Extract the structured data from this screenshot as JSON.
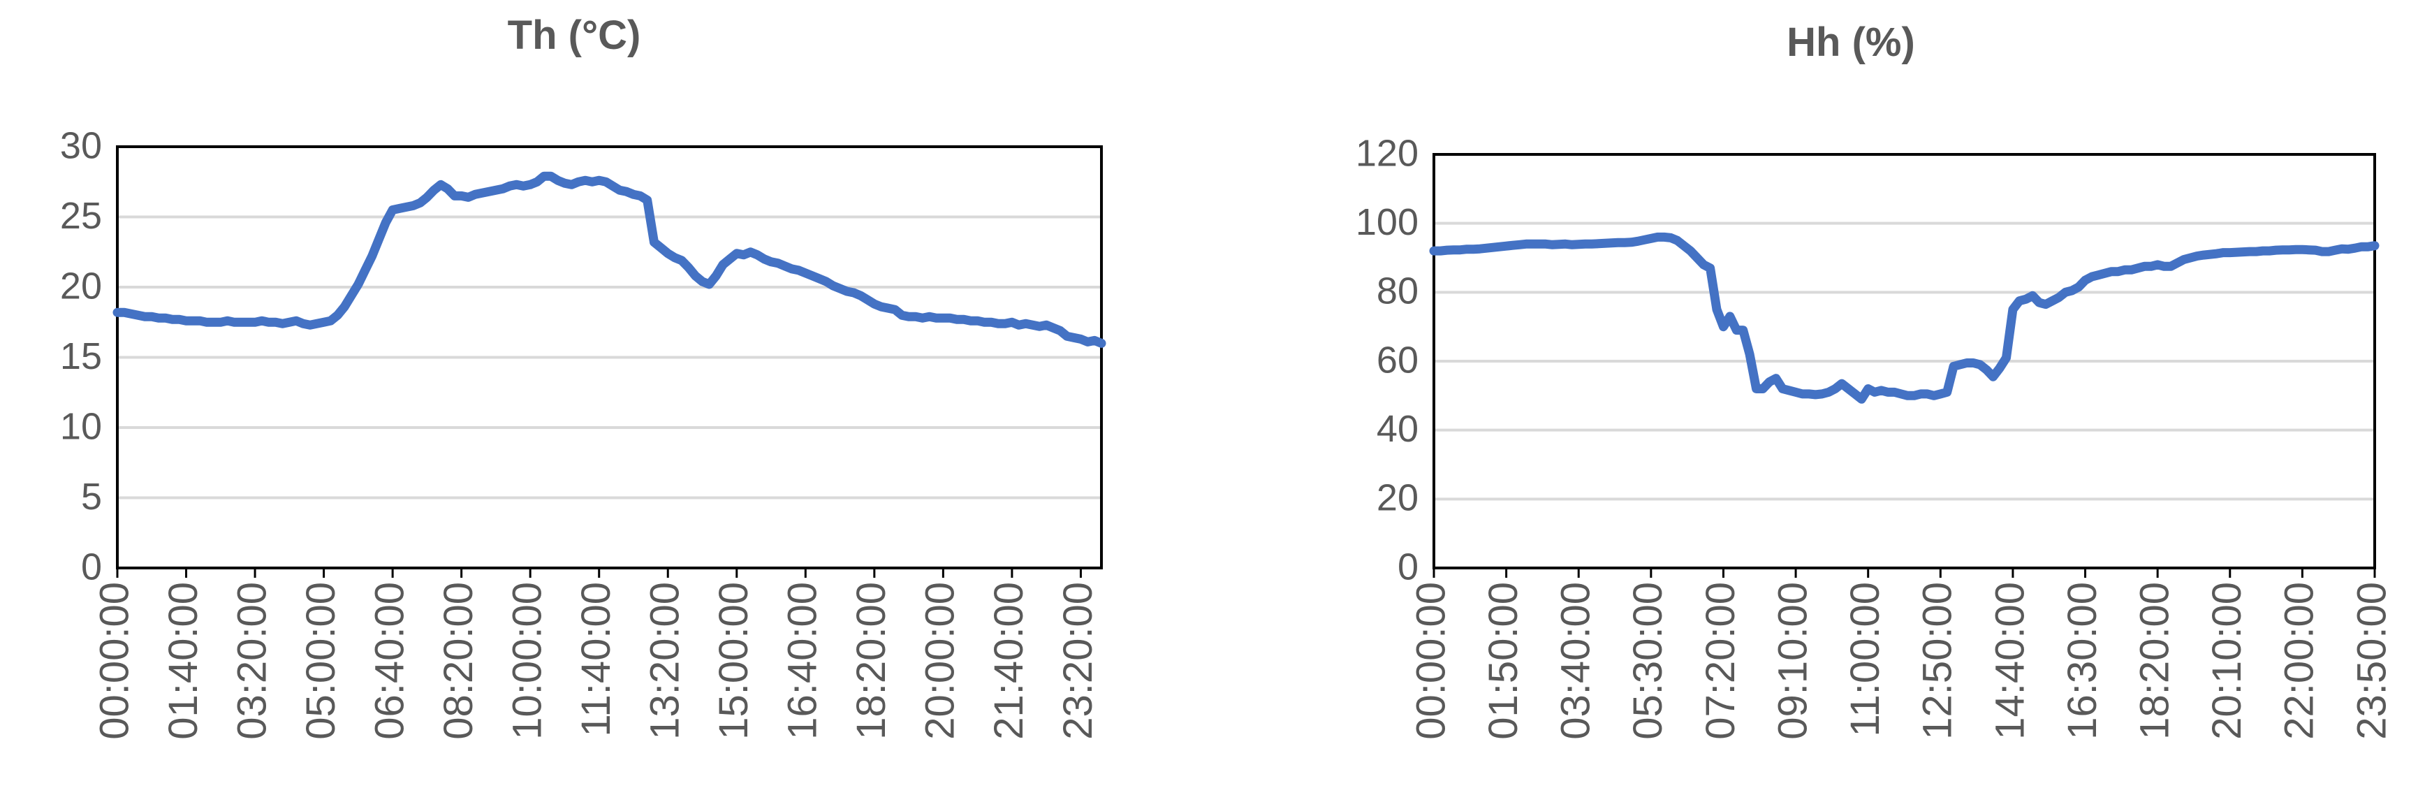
{
  "chart_data": [
    {
      "type": "line",
      "title": "Th (°C)",
      "color": "#4472c4",
      "grid": true,
      "ylim": [
        0,
        30
      ],
      "yticks": [
        0,
        5,
        10,
        15,
        20,
        25,
        30
      ],
      "categories": [
        "00:00:00",
        null,
        null,
        null,
        null,
        null,
        null,
        null,
        null,
        null,
        "01:40:00",
        null,
        null,
        null,
        null,
        null,
        null,
        null,
        null,
        null,
        "03:20:00",
        null,
        null,
        null,
        null,
        null,
        null,
        null,
        null,
        null,
        "05:00:00",
        null,
        null,
        null,
        null,
        null,
        null,
        null,
        null,
        null,
        "06:40:00",
        null,
        null,
        null,
        null,
        null,
        null,
        null,
        null,
        null,
        "08:20:00",
        null,
        null,
        null,
        null,
        null,
        null,
        null,
        null,
        null,
        "10:00:00",
        null,
        null,
        null,
        null,
        null,
        null,
        null,
        null,
        null,
        "11:40:00",
        null,
        null,
        null,
        null,
        null,
        null,
        null,
        null,
        null,
        "13:20:00",
        null,
        null,
        null,
        null,
        null,
        null,
        null,
        null,
        null,
        "15:00:00",
        null,
        null,
        null,
        null,
        null,
        null,
        null,
        null,
        null,
        "16:40:00",
        null,
        null,
        null,
        null,
        null,
        null,
        null,
        null,
        null,
        "18:20:00",
        null,
        null,
        null,
        null,
        null,
        null,
        null,
        null,
        null,
        "20:00:00",
        null,
        null,
        null,
        null,
        null,
        null,
        null,
        null,
        null,
        "21:40:00",
        null,
        null,
        null,
        null,
        null,
        null,
        null,
        null,
        null,
        "23:20:00",
        null,
        null,
        null
      ],
      "values": [
        18.2,
        18.2,
        18.1,
        18.0,
        17.9,
        17.9,
        17.8,
        17.8,
        17.7,
        17.7,
        17.6,
        17.6,
        17.6,
        17.5,
        17.5,
        17.5,
        17.6,
        17.5,
        17.5,
        17.5,
        17.5,
        17.6,
        17.5,
        17.5,
        17.4,
        17.5,
        17.6,
        17.4,
        17.3,
        17.4,
        17.5,
        17.6,
        18.0,
        18.6,
        19.4,
        20.2,
        21.2,
        22.2,
        23.4,
        24.6,
        25.5,
        25.6,
        25.7,
        25.8,
        26.0,
        26.4,
        26.9,
        27.3,
        27.0,
        26.5,
        26.5,
        26.4,
        26.6,
        26.7,
        26.8,
        26.9,
        27.0,
        27.2,
        27.3,
        27.2,
        27.3,
        27.5,
        27.9,
        27.9,
        27.6,
        27.4,
        27.3,
        27.5,
        27.6,
        27.5,
        27.6,
        27.5,
        27.2,
        26.9,
        26.8,
        26.6,
        26.5,
        26.2,
        23.2,
        22.8,
        22.4,
        22.1,
        21.9,
        21.4,
        20.8,
        20.4,
        20.2,
        20.8,
        21.6,
        22.0,
        22.4,
        22.3,
        22.5,
        22.3,
        22.0,
        21.8,
        21.7,
        21.5,
        21.3,
        21.2,
        21.0,
        20.8,
        20.6,
        20.4,
        20.1,
        19.9,
        19.7,
        19.6,
        19.4,
        19.1,
        18.8,
        18.6,
        18.5,
        18.4,
        18.0,
        17.9,
        17.9,
        17.8,
        17.9,
        17.8,
        17.8,
        17.8,
        17.7,
        17.7,
        17.6,
        17.6,
        17.5,
        17.5,
        17.4,
        17.4,
        17.5,
        17.3,
        17.4,
        17.3,
        17.2,
        17.3,
        17.1,
        16.9,
        16.5,
        16.4,
        16.3,
        16.1,
        16.2,
        16.0
      ]
    },
    {
      "type": "line",
      "title": "Hh (%)",
      "color": "#4472c4",
      "grid": true,
      "ylim": [
        0,
        120
      ],
      "yticks": [
        0,
        20,
        40,
        60,
        80,
        100,
        120
      ],
      "categories": [
        "00:00:00",
        null,
        null,
        null,
        null,
        null,
        null,
        null,
        null,
        null,
        null,
        "01:50:00",
        null,
        null,
        null,
        null,
        null,
        null,
        null,
        null,
        null,
        null,
        "03:40:00",
        null,
        null,
        null,
        null,
        null,
        null,
        null,
        null,
        null,
        null,
        "05:30:00",
        null,
        null,
        null,
        null,
        null,
        null,
        null,
        null,
        null,
        null,
        "07:20:00",
        null,
        null,
        null,
        null,
        null,
        null,
        null,
        null,
        null,
        null,
        "09:10:00",
        null,
        null,
        null,
        null,
        null,
        null,
        null,
        null,
        null,
        null,
        "11:00:00",
        null,
        null,
        null,
        null,
        null,
        null,
        null,
        null,
        null,
        null,
        "12:50:00",
        null,
        null,
        null,
        null,
        null,
        null,
        null,
        null,
        null,
        null,
        "14:40:00",
        null,
        null,
        null,
        null,
        null,
        null,
        null,
        null,
        null,
        null,
        "16:30:00",
        null,
        null,
        null,
        null,
        null,
        null,
        null,
        null,
        null,
        null,
        "18:20:00",
        null,
        null,
        null,
        null,
        null,
        null,
        null,
        null,
        null,
        null,
        "20:10:00",
        null,
        null,
        null,
        null,
        null,
        null,
        null,
        null,
        null,
        null,
        "22:00:00",
        null,
        null,
        null,
        null,
        null,
        null,
        null,
        null,
        null,
        null,
        "23:50:00"
      ],
      "values": [
        92,
        92,
        92.2,
        92.3,
        92.3,
        92.5,
        92.5,
        92.6,
        92.8,
        93,
        93.2,
        93.4,
        93.6,
        93.8,
        94,
        94,
        94,
        94,
        93.8,
        93.9,
        94,
        93.8,
        93.9,
        94,
        94,
        94.1,
        94.2,
        94.3,
        94.4,
        94.4,
        94.5,
        94.8,
        95.2,
        95.6,
        96,
        96,
        95.8,
        95,
        93.5,
        92,
        90,
        88,
        87,
        75,
        70,
        73,
        69,
        69,
        62,
        52,
        52,
        54,
        55,
        52,
        51.5,
        51,
        50.5,
        50.5,
        50.3,
        50.5,
        51,
        52,
        53.5,
        52,
        50.5,
        49,
        52,
        51,
        51.5,
        51,
        51,
        50.5,
        50,
        50,
        50.5,
        50.5,
        50,
        50.5,
        51,
        58.5,
        59,
        59.5,
        59.5,
        59,
        57.5,
        55.5,
        58,
        61,
        75,
        77.5,
        78,
        79,
        77,
        76.5,
        77.5,
        78.5,
        80,
        80.5,
        81.5,
        83.5,
        84.5,
        85,
        85.5,
        86,
        86,
        86.5,
        86.5,
        87,
        87.5,
        87.5,
        88,
        87.5,
        87.5,
        88.5,
        89.5,
        90,
        90.5,
        90.8,
        91,
        91.2,
        91.5,
        91.5,
        91.6,
        91.7,
        91.8,
        91.8,
        92,
        92,
        92.2,
        92.3,
        92.3,
        92.4,
        92.4,
        92.3,
        92.2,
        91.8,
        91.8,
        92.2,
        92.6,
        92.5,
        92.8,
        93.2,
        93.2,
        93.5
      ]
    }
  ]
}
